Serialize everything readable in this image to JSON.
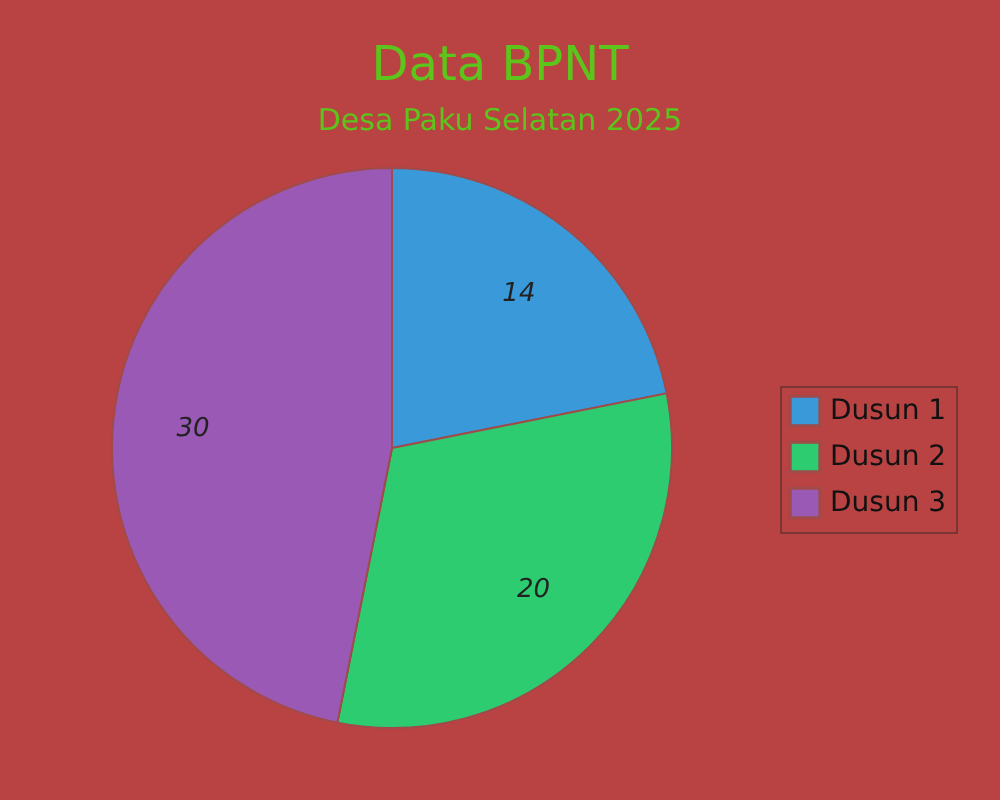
{
  "chart_data": {
    "type": "pie",
    "title": "Data BPNT",
    "subtitle": "Desa Paku Selatan 2025",
    "categories": [
      "Dusun 1",
      "Dusun 2",
      "Dusun 3"
    ],
    "values": [
      14,
      20,
      30
    ],
    "colors": [
      "#3a9ad9",
      "#2ecc71",
      "#9b59b6"
    ],
    "data_labels": true,
    "legend": "right"
  }
}
